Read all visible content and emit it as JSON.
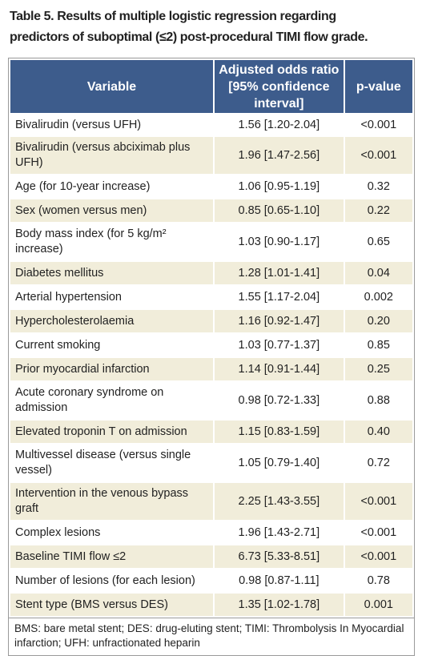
{
  "title": "Table 5. Results of multiple logistic regression regarding predictors of suboptimal (≤2) post-procedural TIMI flow grade.",
  "table": {
    "header": [
      "Variable",
      "Adjusted odds ratio [95% confidence interval]",
      "p-value"
    ],
    "rows": [
      [
        "Bivalirudin (versus UFH)",
        "1.56 [1.20-2.04]",
        "<0.001"
      ],
      [
        "Bivalirudin (versus abciximab plus UFH)",
        "1.96 [1.47-2.56]",
        "<0.001"
      ],
      [
        "Age (for 10-year increase)",
        "1.06 [0.95-1.19]",
        "0.32"
      ],
      [
        "Sex (women versus men)",
        "0.85 [0.65-1.10]",
        "0.22"
      ],
      [
        "Body mass index (for 5 kg/m² increase)",
        "1.03 [0.90-1.17]",
        "0.65"
      ],
      [
        "Diabetes mellitus",
        "1.28 [1.01-1.41]",
        "0.04"
      ],
      [
        "Arterial hypertension",
        "1.55 [1.17-2.04]",
        "0.002"
      ],
      [
        "Hypercholesterolaemia",
        "1.16 [0.92-1.47]",
        "0.20"
      ],
      [
        "Current smoking",
        "1.03 [0.77-1.37]",
        "0.85"
      ],
      [
        "Prior myocardial infarction",
        "1.14 [0.91-1.44]",
        "0.25"
      ],
      [
        "Acute coronary syndrome on admission",
        "0.98 [0.72-1.33]",
        "0.88"
      ],
      [
        "Elevated troponin T on admission",
        "1.15 [0.83-1.59]",
        "0.40"
      ],
      [
        "Multivessel disease (versus single vessel)",
        "1.05 [0.79-1.40]",
        "0.72"
      ],
      [
        "Intervention in the venous bypass graft",
        "2.25 [1.43-3.55]",
        "<0.001"
      ],
      [
        "Complex lesions",
        "1.96 [1.43-2.71]",
        "<0.001"
      ],
      [
        "Baseline TIMI flow ≤2",
        "6.73 [5.33-8.51]",
        "<0.001"
      ],
      [
        "Number of lesions (for each lesion)",
        "0.98 [0.87-1.11]",
        "0.78"
      ],
      [
        "Stent type (BMS versus DES)",
        "1.35 [1.02-1.78]",
        "0.001"
      ]
    ],
    "footnote": "BMS: bare metal stent; DES: drug-eluting stent; TIMI: Thrombolysis In Myocardial infarction; UFH: unfractionated heparin"
  }
}
